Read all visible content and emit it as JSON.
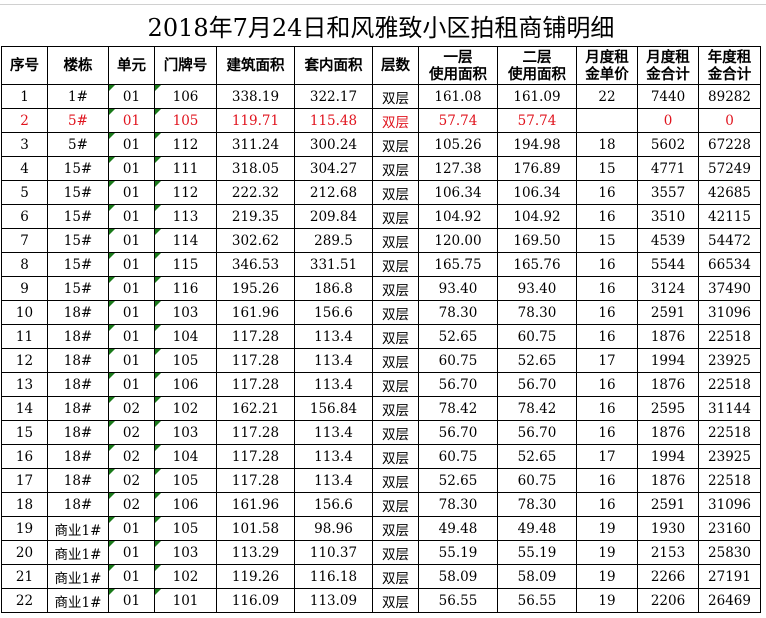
{
  "title": "2018年7月24日和风雅致小区拍租商铺明细",
  "headers": [
    [
      "序号"
    ],
    [
      "楼栋"
    ],
    [
      "单元"
    ],
    [
      "门牌号"
    ],
    [
      "建筑面积"
    ],
    [
      "套内面积"
    ],
    [
      "层数"
    ],
    [
      "一层",
      "使用面积"
    ],
    [
      "二层",
      "使用面积"
    ],
    [
      "月度租",
      "金单价"
    ],
    [
      "月度租",
      "金合计"
    ],
    [
      "年度租",
      "金合计"
    ]
  ],
  "highlight_color": "#e0141e",
  "rows": [
    [
      "1",
      "1#",
      "01",
      "106",
      "338.19",
      "322.17",
      "双层",
      "161.08",
      "161.09",
      "22",
      "7440",
      "89282"
    ],
    [
      "2",
      "5#",
      "01",
      "105",
      "119.71",
      "115.48",
      "双层",
      "57.74",
      "57.74",
      "",
      "0",
      "0"
    ],
    [
      "3",
      "5#",
      "01",
      "112",
      "311.24",
      "300.24",
      "双层",
      "105.26",
      "194.98",
      "18",
      "5602",
      "67228"
    ],
    [
      "4",
      "15#",
      "01",
      "111",
      "318.05",
      "304.27",
      "双层",
      "127.38",
      "176.89",
      "15",
      "4771",
      "57249"
    ],
    [
      "5",
      "15#",
      "01",
      "112",
      "222.32",
      "212.68",
      "双层",
      "106.34",
      "106.34",
      "16",
      "3557",
      "42685"
    ],
    [
      "6",
      "15#",
      "01",
      "113",
      "219.35",
      "209.84",
      "双层",
      "104.92",
      "104.92",
      "16",
      "3510",
      "42115"
    ],
    [
      "7",
      "15#",
      "01",
      "114",
      "302.62",
      "289.5",
      "双层",
      "120.00",
      "169.50",
      "15",
      "4539",
      "54472"
    ],
    [
      "8",
      "15#",
      "01",
      "115",
      "346.53",
      "331.51",
      "双层",
      "165.75",
      "165.76",
      "16",
      "5544",
      "66534"
    ],
    [
      "9",
      "15#",
      "01",
      "116",
      "195.26",
      "186.8",
      "双层",
      "93.40",
      "93.40",
      "16",
      "3124",
      "37490"
    ],
    [
      "10",
      "18#",
      "01",
      "103",
      "161.96",
      "156.6",
      "双层",
      "78.30",
      "78.30",
      "16",
      "2591",
      "31096"
    ],
    [
      "11",
      "18#",
      "01",
      "104",
      "117.28",
      "113.4",
      "双层",
      "52.65",
      "60.75",
      "16",
      "1876",
      "22518"
    ],
    [
      "12",
      "18#",
      "01",
      "105",
      "117.28",
      "113.4",
      "双层",
      "60.75",
      "52.65",
      "17",
      "1994",
      "23925"
    ],
    [
      "13",
      "18#",
      "01",
      "106",
      "117.28",
      "113.4",
      "双层",
      "56.70",
      "56.70",
      "16",
      "1876",
      "22518"
    ],
    [
      "14",
      "18#",
      "02",
      "102",
      "162.21",
      "156.84",
      "双层",
      "78.42",
      "78.42",
      "16",
      "2595",
      "31144"
    ],
    [
      "15",
      "18#",
      "02",
      "103",
      "117.28",
      "113.4",
      "双层",
      "56.70",
      "56.70",
      "16",
      "1876",
      "22518"
    ],
    [
      "16",
      "18#",
      "02",
      "104",
      "117.28",
      "113.4",
      "双层",
      "60.75",
      "52.65",
      "17",
      "1994",
      "23925"
    ],
    [
      "17",
      "18#",
      "02",
      "105",
      "117.28",
      "113.4",
      "双层",
      "52.65",
      "60.75",
      "16",
      "1876",
      "22518"
    ],
    [
      "18",
      "18#",
      "02",
      "106",
      "161.96",
      "156.6",
      "双层",
      "78.30",
      "78.30",
      "16",
      "2591",
      "31096"
    ],
    [
      "19",
      "商业1#",
      "01",
      "105",
      "101.58",
      "98.96",
      "双层",
      "49.48",
      "49.48",
      "19",
      "1930",
      "23160"
    ],
    [
      "20",
      "商业1#",
      "01",
      "103",
      "113.29",
      "110.37",
      "双层",
      "55.19",
      "55.19",
      "19",
      "2153",
      "25830"
    ],
    [
      "21",
      "商业1#",
      "01",
      "102",
      "119.26",
      "116.18",
      "双层",
      "58.09",
      "58.09",
      "19",
      "2266",
      "27191"
    ],
    [
      "22",
      "商业1#",
      "01",
      "101",
      "116.09",
      "113.09",
      "双层",
      "56.55",
      "56.55",
      "19",
      "2206",
      "26469"
    ]
  ],
  "red_rows": [
    1
  ]
}
